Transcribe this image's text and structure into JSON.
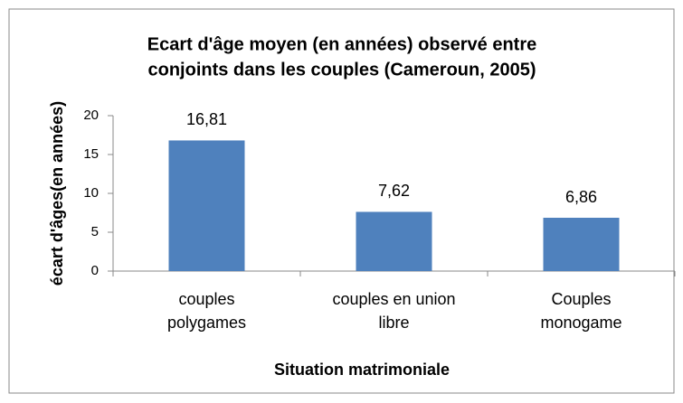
{
  "chart_data": {
    "type": "bar",
    "title": [
      "Ecart d'âge moyen (en années) observé entre",
      "conjoints dans les couples (Cameroun, 2005)"
    ],
    "categories": [
      "couples polygames",
      "couples en union libre",
      "Couples monogame"
    ],
    "values": [
      16.81,
      7.62,
      6.86
    ],
    "value_labels": [
      "16,81",
      "7,62",
      "6,86"
    ],
    "color": "#4f81bd",
    "xlabel": "Situation matrimoniale",
    "ylabel": "écart d'âges(en années)",
    "ylim": [
      0,
      20
    ],
    "yticks": [
      0,
      5,
      10,
      15,
      20
    ],
    "grid": false
  }
}
